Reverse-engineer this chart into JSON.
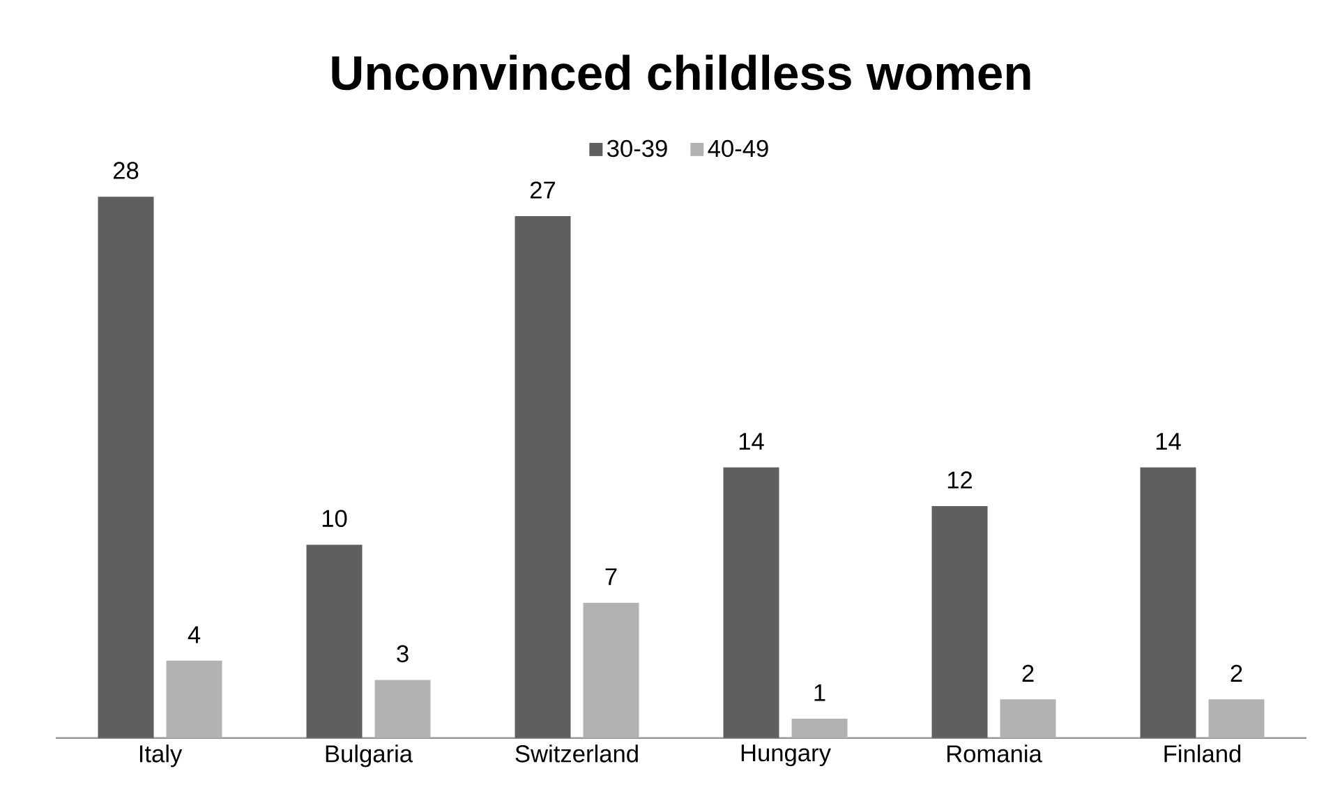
{
  "chart_data": {
    "type": "bar",
    "title": "Unconvinced childless women",
    "categories": [
      "Italy",
      "Bulgaria",
      "Switzerland",
      "Hungary",
      "Romania",
      "Finland"
    ],
    "series": [
      {
        "name": "30-39",
        "color": "#5f5f5f",
        "values": [
          28,
          10,
          27,
          14,
          12,
          14
        ]
      },
      {
        "name": "40-49",
        "color": "#b2b2b2",
        "values": [
          4,
          3,
          7,
          1,
          2,
          2
        ]
      }
    ],
    "data_labels": true,
    "legend": "top"
  }
}
